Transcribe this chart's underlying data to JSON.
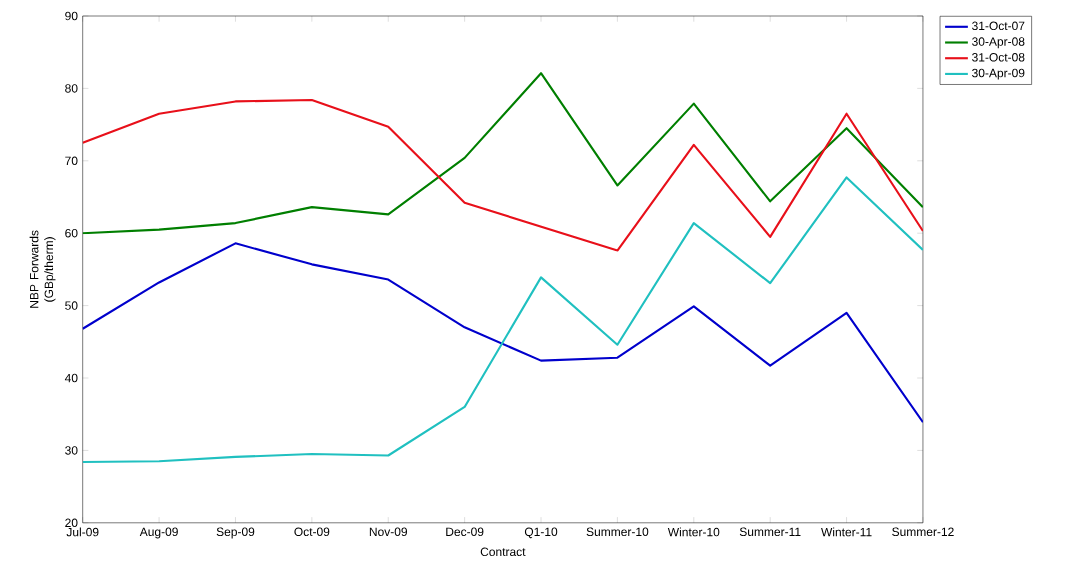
{
  "chart_data": {
    "type": "line",
    "xlabel": "Contract",
    "ylabel": "NBP Forwards (GBp/therm)",
    "categories": [
      "Jul-09",
      "Aug-09",
      "Sep-09",
      "Oct-09",
      "Nov-09",
      "Dec-09",
      "Q1-10",
      "Summer-10",
      "Winter-10",
      "Summer-11",
      "Winter-11",
      "Summer-12"
    ],
    "series": [
      {
        "name": "31-Oct-07",
        "color": "#0000cc",
        "values": [
          46.8,
          53.2,
          58.6,
          55.7,
          53.6,
          47.0,
          42.4,
          42.8,
          49.9,
          41.7,
          49.0,
          33.9
        ]
      },
      {
        "name": "30-Apr-08",
        "color": "#007f00",
        "values": [
          60.0,
          60.5,
          61.4,
          63.6,
          62.6,
          70.4,
          82.1,
          66.6,
          77.9,
          64.4,
          74.5,
          63.6
        ]
      },
      {
        "name": "31-Oct-08",
        "color": "#e8101a",
        "values": [
          72.5,
          76.5,
          78.2,
          78.4,
          74.7,
          64.2,
          60.9,
          57.6,
          72.2,
          59.5,
          76.5,
          60.3
        ]
      },
      {
        "name": "30-Apr-09",
        "color": "#20c0c0",
        "values": [
          28.4,
          28.5,
          29.1,
          29.5,
          29.3,
          36.0,
          53.9,
          44.6,
          61.4,
          53.1,
          67.7,
          57.7
        ]
      }
    ],
    "ylim": [
      20,
      90
    ],
    "yticks": [
      20,
      30,
      40,
      50,
      60,
      70,
      80,
      90
    ],
    "legend": "right"
  }
}
